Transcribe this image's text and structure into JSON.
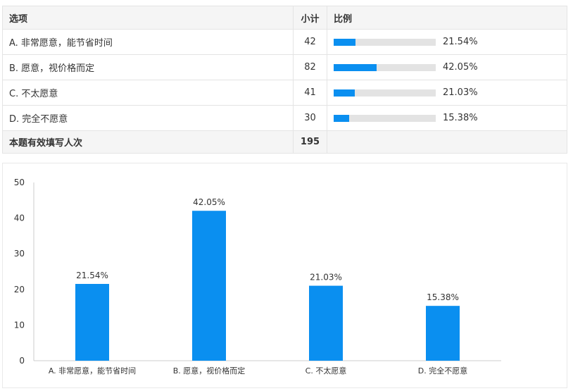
{
  "table": {
    "headers": {
      "option": "选项",
      "count": "小计",
      "ratio": "比例"
    },
    "rows": [
      {
        "option": "A. 非常愿意，能节省时间",
        "count": "42",
        "percent": "21.54%",
        "fraction": 0.2154
      },
      {
        "option": "B. 愿意，视价格而定",
        "count": "82",
        "percent": "42.05%",
        "fraction": 0.4205
      },
      {
        "option": "C. 不太愿意",
        "count": "41",
        "percent": "21.03%",
        "fraction": 0.2103
      },
      {
        "option": "D. 完全不愿意",
        "count": "30",
        "percent": "15.38%",
        "fraction": 0.1538
      }
    ],
    "total": {
      "label": "本题有效填写人次",
      "count": "195"
    }
  },
  "colors": {
    "bar": "#0a8ff0",
    "track": "#e3e3e3",
    "axis": "#cccccc",
    "text": "#333333"
  },
  "chart_data": {
    "type": "bar",
    "categories": [
      "A. 非常愿意，能节省时间",
      "B. 愿意，视价格而定",
      "C. 不太愿意",
      "D. 完全不愿意"
    ],
    "values": [
      21.54,
      42.05,
      21.03,
      15.38
    ],
    "data_labels": [
      "21.54%",
      "42.05%",
      "21.03%",
      "15.38%"
    ],
    "yticks": [
      "0",
      "10",
      "20",
      "30",
      "40",
      "50"
    ],
    "ylim": [
      0,
      50
    ],
    "grid": false,
    "legend": "none"
  }
}
